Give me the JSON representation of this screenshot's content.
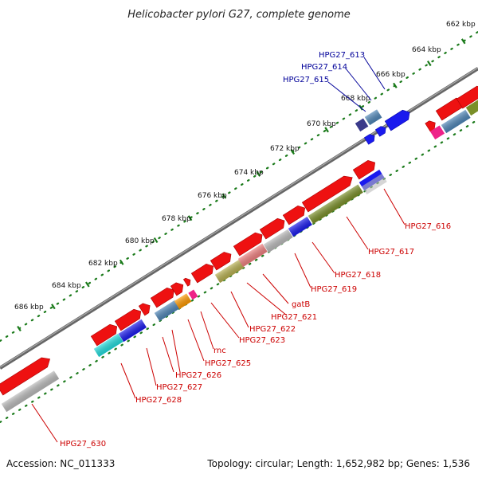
{
  "title": "Helicobacter pylori G27, complete genome",
  "footer": {
    "accession": "Accession: NC_011333",
    "summary": "Topology: circular; Length: 1,652,982 bp; Genes: 1,536"
  },
  "scale_labels": [
    "662 kbp",
    "664 kbp",
    "666 kbp",
    "668 kbp",
    "670 kbp",
    "672 kbp",
    "674 kbp",
    "676 kbp",
    "678 kbp",
    "680 kbp",
    "682 kbp",
    "684 kbp",
    "686 kbp"
  ],
  "gene_labels": {
    "HPG27_613": "HPG27_613",
    "HPG27_614": "HPG27_614",
    "HPG27_615": "HPG27_615",
    "HPG27_616": "HPG27_616",
    "HPG27_617": "HPG27_617",
    "HPG27_618": "HPG27_618",
    "HPG27_619": "HPG27_619",
    "gatB": "gatB",
    "HPG27_621": "HPG27_621",
    "HPG27_622": "HPG27_622",
    "HPG27_623": "HPG27_623",
    "rnc": "rnc",
    "HPG27_625": "HPG27_625",
    "HPG27_626": "HPG27_626",
    "HPG27_627": "HPG27_627",
    "HPG27_628": "HPG27_628",
    "HPG27_630": "HPG27_630"
  },
  "colors": {
    "backbone": "#888888",
    "scale_dots": "#1a7a1a",
    "gene_forward": "#ee1111",
    "label_red": "#cc0000",
    "label_blue": "#000099",
    "steelblue": "#4f86b8",
    "blue": "#1a1aee",
    "navy": "#3a3a8a",
    "gray": "#bbbbbb",
    "olive": "#7a8f28",
    "khaki": "#b8b050",
    "salmon": "#f08080",
    "orange": "#ff9900",
    "magenta": "#ee2288",
    "cyan": "#22dddd"
  }
}
